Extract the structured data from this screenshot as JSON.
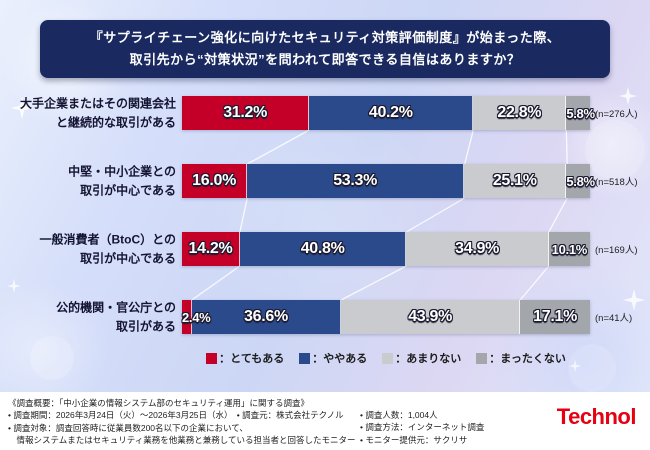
{
  "title": {
    "line1": "『サプライチェーン強化に向けたセキュリティ対策評価制度』が始まった際、",
    "line2": "取引先から“対策状況”を問われて即答できる自信はありますか？"
  },
  "chart_data": {
    "type": "bar",
    "stacked": true,
    "orientation": "horizontal",
    "xlim": [
      0,
      100
    ],
    "categories": [
      "大手企業またはその関連会社\nと継続的な取引がある",
      "中堅・中小企業との\n取引が中心である",
      "一般消費者（BtoC）との\n取引が中心である",
      "公的機関・官公庁との\n取引がある"
    ],
    "sample_sizes": [
      "(n=276人)",
      "(n=518人)",
      "(n=169人)",
      "(n=41人)"
    ],
    "series": [
      {
        "key": "totemo-aru",
        "name": "とてもある",
        "color": "#c40029",
        "values": [
          31.2,
          16.0,
          14.2,
          2.4
        ]
      },
      {
        "key": "yaya-aru",
        "name": "ややある",
        "color": "#2b4a8c",
        "values": [
          40.2,
          53.3,
          40.8,
          36.6
        ]
      },
      {
        "key": "amari-nai",
        "name": "あまりない",
        "color": "#c9cbce",
        "values": [
          22.8,
          25.1,
          34.9,
          43.9
        ]
      },
      {
        "key": "mattaku-nai",
        "name": "まったくない",
        "color": "#a3a6ab",
        "values": [
          5.8,
          5.8,
          10.1,
          17.1
        ]
      }
    ]
  },
  "legend": {
    "items": [
      {
        "label": "：とてもある",
        "color": "#c40029"
      },
      {
        "label": "：ややある",
        "color": "#2b4a8c"
      },
      {
        "label": "：あまりない",
        "color": "#c9cbce"
      },
      {
        "label": "：まったくない",
        "color": "#a3a6ab"
      }
    ]
  },
  "footer": {
    "overview": "《調査概要：「中小企業の情報システム部のセキュリティ運用」に関する調査》",
    "left_lines": [
      "• 調査期間：2026年3月24日（火）～2026年3月25日（水）　• 調査元：株式会社テクノル",
      "• 調査対象：調査回答時に従業員数200名以下の企業において、",
      "　情報システムまたはセキュリティ業務を他業務と兼務している担当者と回答したモニター"
    ],
    "right_lines": [
      "• 調査人数：1,004人",
      "• 調査方法：インターネット調査",
      "• モニター提供元：サクリサ"
    ],
    "logo": "Technol",
    "logo_color": "#e60012"
  }
}
